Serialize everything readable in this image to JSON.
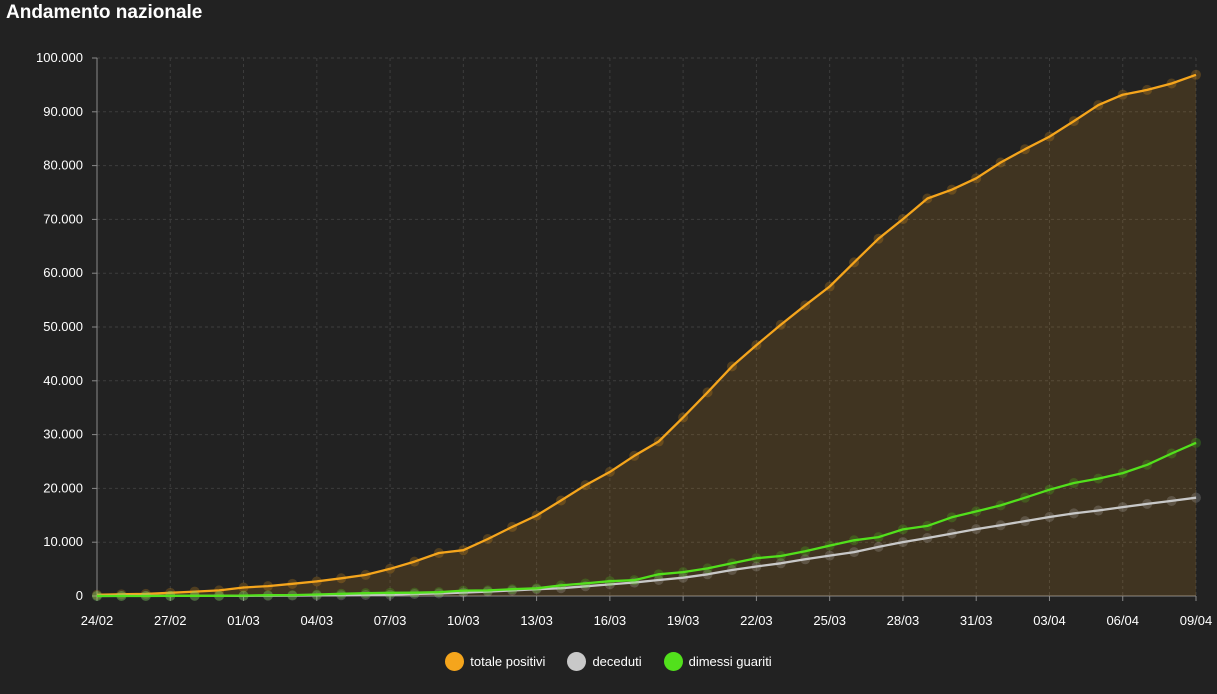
{
  "title": "Andamento nazionale",
  "chart_data": {
    "type": "area",
    "title": "Andamento nazionale",
    "x_start": "2020-02-24",
    "x_tick_labels": [
      "24/02",
      "27/02",
      "01/03",
      "04/03",
      "07/03",
      "10/03",
      "13/03",
      "16/03",
      "19/03",
      "22/03",
      "25/03",
      "28/03",
      "31/03",
      "03/04",
      "06/04",
      "09/04"
    ],
    "y_tick_labels": [
      "0",
      "10.000",
      "20.000",
      "30.000",
      "40.000",
      "50.000",
      "60.000",
      "70.000",
      "80.000",
      "90.000",
      "100.000"
    ],
    "ylim": [
      0,
      100000
    ],
    "grid": true,
    "legend_position": "bottom",
    "series": [
      {
        "name": "totale positivi",
        "color": "#f5a51c",
        "filled": true,
        "values": [
          221,
          311,
          385,
          588,
          821,
          1049,
          1577,
          1835,
          2263,
          2706,
          3296,
          3916,
          5061,
          6387,
          7985,
          8514,
          10590,
          12839,
          14955,
          17750,
          20603,
          23073,
          26062,
          28710,
          33190,
          37860,
          42681,
          46638,
          50418,
          54030,
          57521,
          62013,
          66414,
          70065,
          73880,
          75528,
          77635,
          80572,
          83049,
          85388,
          88274,
          91246,
          93187,
          94067,
          95262,
          96877
        ]
      },
      {
        "name": "deceduti",
        "color": "#c8c8c8",
        "filled": false,
        "values": [
          7,
          10,
          12,
          17,
          21,
          29,
          34,
          52,
          79,
          107,
          148,
          197,
          233,
          366,
          463,
          631,
          827,
          1016,
          1266,
          1441,
          1809,
          2158,
          2503,
          2978,
          3405,
          4032,
          4825,
          5476,
          6077,
          6820,
          7503,
          8165,
          9134,
          10023,
          10779,
          11591,
          12428,
          13155,
          13915,
          14681,
          15362,
          15887,
          16523,
          17127,
          17669,
          18279
        ]
      },
      {
        "name": "dimessi guariti",
        "color": "#52e01c",
        "filled": false,
        "values": [
          1,
          1,
          3,
          45,
          46,
          46,
          83,
          149,
          160,
          276,
          414,
          523,
          589,
          622,
          724,
          1004,
          1045,
          1258,
          1439,
          1966,
          2335,
          2749,
          2941,
          4025,
          4440,
          5129,
          6072,
          7024,
          7432,
          8326,
          9362,
          10361,
          10950,
          12384,
          13030,
          14620,
          15729,
          16847,
          18278,
          19758,
          20996,
          21815,
          22837,
          24392,
          26491,
          28470
        ]
      }
    ]
  },
  "legend": {
    "items": [
      {
        "label": "totale positivi",
        "color": "#f5a51c"
      },
      {
        "label": "deceduti",
        "color": "#c8c8c8"
      },
      {
        "label": "dimessi guariti",
        "color": "#52e01c"
      }
    ]
  }
}
